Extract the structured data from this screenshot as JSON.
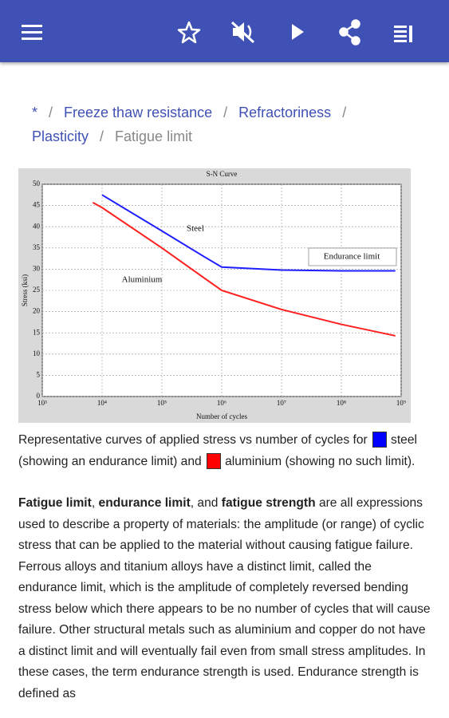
{
  "breadcrumbs": {
    "items": [
      "*",
      "Freeze thaw resistance",
      "Refractoriness",
      "Plasticity",
      "Fatigue limit"
    ],
    "separator": "/"
  },
  "chart_data": {
    "type": "line",
    "title": "S-N Curve",
    "xlabel": "Number of cycles",
    "ylabel": "Stress (ksi)",
    "xscale": "log",
    "x": [
      7000,
      10000,
      100000,
      500000,
      1000000,
      10000000,
      100000000,
      800000000
    ],
    "series": [
      {
        "name": "Steel",
        "color": "#1f1fff",
        "values": [
          null,
          47.5,
          39,
          33,
          30.5,
          29.8,
          29.6,
          29.6
        ]
      },
      {
        "name": "Aluminium",
        "color": "#ff1f1f",
        "values": [
          45.7,
          44.5,
          35,
          28,
          25,
          20.5,
          17,
          14.3
        ]
      }
    ],
    "annotations": [
      "Steel",
      "Aluminium",
      "Endurance limit"
    ],
    "xlim": [
      1000,
      1000000000
    ],
    "xticks": [
      {
        "value": 1000,
        "label": "10³"
      },
      {
        "value": 10000,
        "label": "10⁴"
      },
      {
        "value": 100000,
        "label": "10⁵"
      },
      {
        "value": 1000000,
        "label": "10⁶"
      },
      {
        "value": 10000000,
        "label": "10⁷"
      },
      {
        "value": 100000000,
        "label": "10⁸"
      },
      {
        "value": 1000000000,
        "label": "10⁹"
      }
    ],
    "ylim": [
      0,
      50
    ],
    "yticks": [
      0,
      5,
      10,
      15,
      20,
      25,
      30,
      35,
      40,
      45,
      50
    ],
    "grid": true
  },
  "caption": [
    "Representative curves of applied stress vs number of cycles for",
    "steel (showing an endurance limit) and",
    "aluminium (showing no such limit)."
  ],
  "article": {
    "segments": [
      {
        "text": "Fatigue limit",
        "bold": true
      },
      {
        "text": ", ",
        "bold": false
      },
      {
        "text": "endurance limit",
        "bold": true
      },
      {
        "text": ", and ",
        "bold": false
      },
      {
        "text": "fatigue strength",
        "bold": true
      },
      {
        "text": " are all expressions used to describe a property of materials: the amplitude (or range) of cyclic stress that can be applied to the material without causing fatigue failure. Ferrous alloys and titanium alloys have a distinct limit, called the endurance limit, which is the amplitude of completely reversed bending stress below which there appears to be no number of cycles that will cause failure. Other structural metals such as aluminium and copper do not have a distinct limit and will eventually fail even from small stress amplitudes. In these cases, the term endurance strength is used. Endurance strength is defined as",
        "bold": false
      }
    ]
  }
}
